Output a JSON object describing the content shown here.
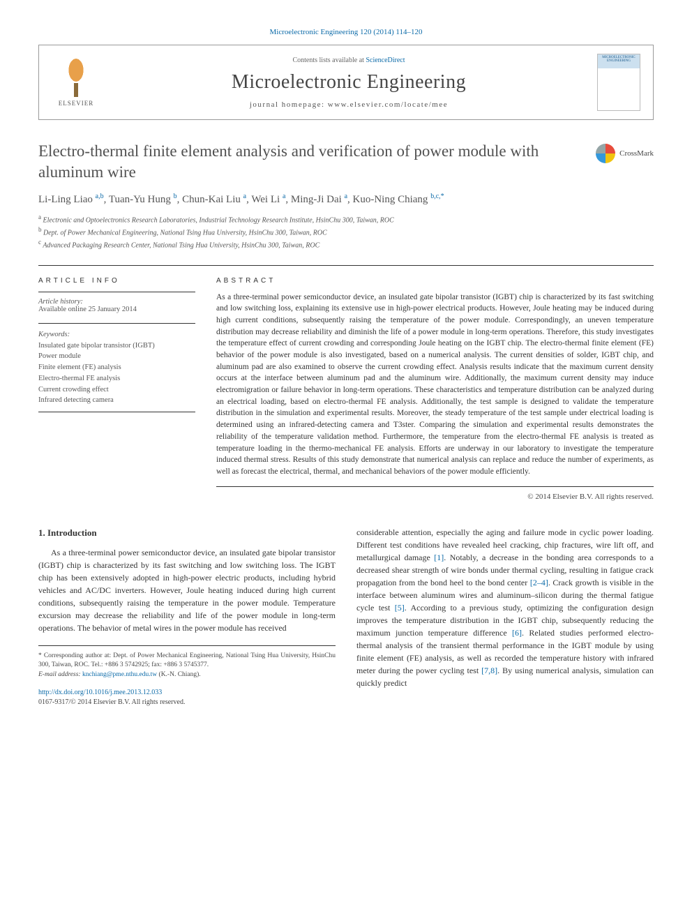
{
  "journal_header_link": "Microelectronic Engineering 120 (2014) 114–120",
  "header": {
    "contents_prefix": "Contents lists available at ",
    "contents_link": "ScienceDirect",
    "journal_name": "Microelectronic Engineering",
    "homepage_prefix": "journal homepage: ",
    "homepage_url": "www.elsevier.com/locate/mee",
    "publisher": "ELSEVIER",
    "cover_label": "MICROELECTRONIC ENGINEERING"
  },
  "crossmark_label": "CrossMark",
  "title": "Electro-thermal finite element analysis and verification of power module with aluminum wire",
  "authors_html": "Li-Ling Liao <sup>a,b</sup>, Tuan-Yu Hung <sup>b</sup>, Chun-Kai Liu <sup>a</sup>, Wei Li <sup>a</sup>, Ming-Ji Dai <sup>a</sup>, Kuo-Ning Chiang <sup>b,c,</sup><sup class='star'>*</sup>",
  "affiliations": {
    "a": "Electronic and Optoelectronics Research Laboratories, Industrial Technology Research Institute, HsinChu 300, Taiwan, ROC",
    "b": "Dept. of Power Mechanical Engineering, National Tsing Hua University, HsinChu 300, Taiwan, ROC",
    "c": "Advanced Packaging Research Center, National Tsing Hua University, HsinChu 300, Taiwan, ROC"
  },
  "info": {
    "section_label": "ARTICLE INFO",
    "history_label": "Article history:",
    "history_value": "Available online 25 January 2014",
    "keywords_label": "Keywords:",
    "keywords": [
      "Insulated gate bipolar transistor (IGBT)",
      "Power module",
      "Finite element (FE) analysis",
      "Electro-thermal FE analysis",
      "Current crowding effect",
      "Infrared detecting camera"
    ]
  },
  "abstract": {
    "section_label": "ABSTRACT",
    "text": "As a three-terminal power semiconductor device, an insulated gate bipolar transistor (IGBT) chip is characterized by its fast switching and low switching loss, explaining its extensive use in high-power electrical products. However, Joule heating may be induced during high current conditions, subsequently raising the temperature of the power module. Correspondingly, an uneven temperature distribution may decrease reliability and diminish the life of a power module in long-term operations. Therefore, this study investigates the temperature effect of current crowding and corresponding Joule heating on the IGBT chip. The electro-thermal finite element (FE) behavior of the power module is also investigated, based on a numerical analysis. The current densities of solder, IGBT chip, and aluminum pad are also examined to observe the current crowding effect. Analysis results indicate that the maximum current density occurs at the interface between aluminum pad and the aluminum wire. Additionally, the maximum current density may induce electromigration or failure behavior in long-term operations. These characteristics and temperature distribution can be analyzed during an electrical loading, based on electro-thermal FE analysis. Additionally, the test sample is designed to validate the temperature distribution in the simulation and experimental results. Moreover, the steady temperature of the test sample under electrical loading is determined using an infrared-detecting camera and T3ster. Comparing the simulation and experimental results demonstrates the reliability of the temperature validation method. Furthermore, the temperature from the electro-thermal FE analysis is treated as temperature loading in the thermo-mechanical FE analysis. Efforts are underway in our laboratory to investigate the temperature induced thermal stress. Results of this study demonstrate that numerical analysis can replace and reduce the number of experiments, as well as forecast the electrical, thermal, and mechanical behaviors of the power module efficiently.",
    "copyright": "© 2014 Elsevier B.V. All rights reserved."
  },
  "body": {
    "section_number": "1.",
    "section_title": "Introduction",
    "col1_p1": "As a three-terminal power semiconductor device, an insulated gate bipolar transistor (IGBT) chip is characterized by its fast switching and low switching loss. The IGBT chip has been extensively adopted in high-power electric products, including hybrid vehicles and AC/DC inverters. However, Joule heating induced during high current conditions, subsequently raising the temperature in the power module. Temperature excursion may decrease the reliability and life of the power module in long-term operations. The behavior of metal wires in the power module has received",
    "col2_p1_a": "considerable attention, especially the aging and failure mode in cyclic power loading. Different test conditions have revealed heel cracking, chip fractures, wire lift off, and metallurgical damage ",
    "col2_ref1": "[1]",
    "col2_p1_b": ". Notably, a decrease in the bonding area corresponds to a decreased shear strength of wire bonds under thermal cycling, resulting in fatigue crack propagation from the bond heel to the bond center ",
    "col2_ref2": "[2–4]",
    "col2_p1_c": ". Crack growth is visible in the interface between aluminum wires and aluminum–silicon during the thermal fatigue cycle test ",
    "col2_ref3": "[5]",
    "col2_p1_d": ". According to a previous study, optimizing the configuration design improves the temperature distribution in the IGBT chip, subsequently reducing the maximum junction temperature difference ",
    "col2_ref4": "[6]",
    "col2_p1_e": ". Related studies performed electro-thermal analysis of the transient thermal performance in the IGBT module by using finite element (FE) analysis, as well as recorded the temperature history with infrared meter during the power cycling test ",
    "col2_ref5": "[7,8]",
    "col2_p1_f": ". By using numerical analysis, simulation can quickly predict"
  },
  "footnotes": {
    "corresponding": "* Corresponding author at: Dept. of Power Mechanical Engineering, National Tsing Hua University, HsinChu 300, Taiwan, ROC. Tel.: +886 3 5742925; fax: +886 3 5745377.",
    "email_label": "E-mail address: ",
    "email": "knchiang@pme.nthu.edu.tw",
    "email_suffix": " (K.-N. Chiang).",
    "doi_url": "http://dx.doi.org/10.1016/j.mee.2013.12.033",
    "issn_line": "0167-9317/© 2014 Elsevier B.V. All rights reserved."
  },
  "colors": {
    "link": "#0b6aa8",
    "text": "#333333",
    "muted": "#555555",
    "border": "#333333"
  }
}
